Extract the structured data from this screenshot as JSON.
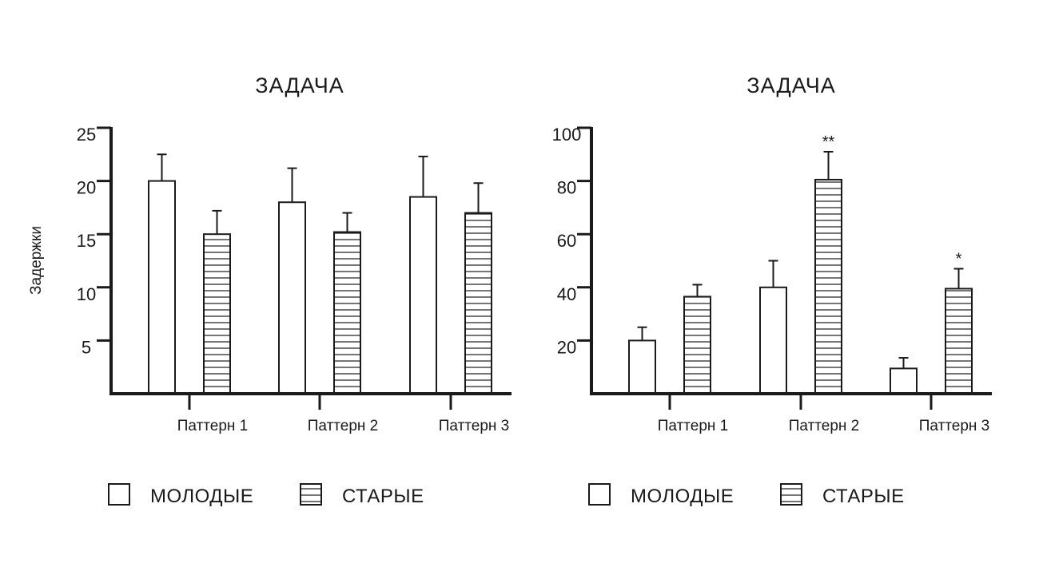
{
  "legend": {
    "young_label": "МОЛОДЫЕ",
    "old_label": "СТАРЫЕ"
  },
  "colors": {
    "ink": "#1a1a1a",
    "background": "#ffffff"
  },
  "chart_data": [
    {
      "type": "bar",
      "title": "ЗАДАЧА",
      "xlabel": "",
      "ylabel": "Задержки",
      "categories": [
        "Паттерн 1",
        "Паттерн 2",
        "Паттерн 3"
      ],
      "ylim": [
        0,
        25
      ],
      "yticks": [
        5,
        10,
        15,
        20,
        25
      ],
      "grid": false,
      "legend_position": "bottom",
      "series": [
        {
          "name": "МОЛОДЫЕ",
          "pattern": "empty",
          "values": [
            20,
            18,
            18.5
          ],
          "errors": [
            2.5,
            3.2,
            3.8
          ]
        },
        {
          "name": "СТАРЫЕ",
          "pattern": "horizontal-lines",
          "values": [
            15,
            15.2,
            17
          ],
          "errors": [
            2.2,
            1.8,
            2.8
          ]
        }
      ],
      "annotations": []
    },
    {
      "type": "bar",
      "title": "ЗАДАЧА",
      "xlabel": "",
      "ylabel": "",
      "categories": [
        "Паттерн 1",
        "Паттерн 2",
        "Паттерн 3"
      ],
      "ylim": [
        0,
        100
      ],
      "yticks": [
        20,
        40,
        60,
        80,
        100
      ],
      "grid": false,
      "legend_position": "bottom",
      "series": [
        {
          "name": "МОЛОДЫЕ",
          "pattern": "empty",
          "values": [
            20,
            40,
            9.5
          ],
          "errors": [
            5,
            10,
            4
          ]
        },
        {
          "name": "СТАРЫЕ",
          "pattern": "horizontal-lines",
          "values": [
            36.5,
            80.5,
            39.5
          ],
          "errors": [
            4.5,
            10.5,
            7.5
          ]
        }
      ],
      "annotations": [
        {
          "series": 1,
          "category": 1,
          "text": "**"
        },
        {
          "series": 1,
          "category": 2,
          "text": "*"
        }
      ]
    }
  ]
}
